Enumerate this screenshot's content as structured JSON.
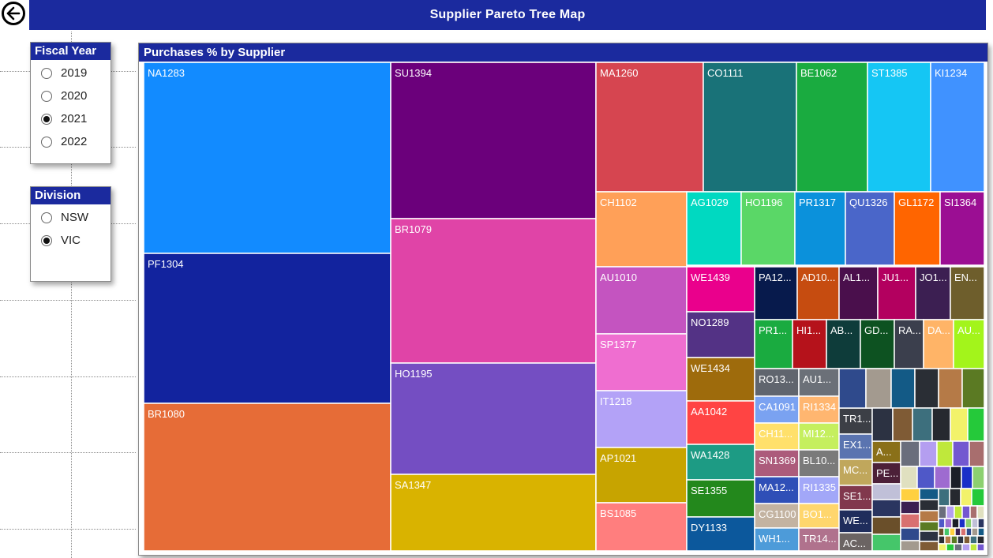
{
  "page": {
    "title": "Supplier Pareto Tree Map"
  },
  "back_button": {
    "icon": "arrow-left-circle-icon"
  },
  "slicers": {
    "fiscal_year": {
      "header": "Fiscal Year",
      "options": [
        {
          "label": "2019",
          "selected": false
        },
        {
          "label": "2020",
          "selected": false
        },
        {
          "label": "2021",
          "selected": true
        },
        {
          "label": "2022",
          "selected": false
        }
      ]
    },
    "division": {
      "header": "Division",
      "options": [
        {
          "label": "NSW",
          "selected": false
        },
        {
          "label": "VIC",
          "selected": true
        }
      ]
    }
  },
  "colors": {
    "header_bg": "#1b2a9e",
    "header_text": "#ffffff"
  },
  "chart_data": {
    "type": "treemap",
    "title": "Purchases % by Supplier",
    "unit": "percent of purchases (estimated from tile area)",
    "labeled_suppliers": [
      {
        "name": "NA1283",
        "value": 10.0,
        "color": "#128bff"
      },
      {
        "name": "PF1304",
        "value": 8.3,
        "color": "#12239e"
      },
      {
        "name": "BR1080",
        "value": 8.3,
        "color": "#e66c37"
      },
      {
        "name": "SU1394",
        "value": 7.2,
        "color": "#6b007b"
      },
      {
        "name": "BR1079",
        "value": 6.7,
        "color": "#e044a7"
      },
      {
        "name": "HO1195",
        "value": 5.2,
        "color": "#744ec2"
      },
      {
        "name": "SA1347",
        "value": 3.6,
        "color": "#d9b300"
      },
      {
        "name": "MA1260",
        "value": 3.0,
        "color": "#d64550"
      },
      {
        "name": "CO1111",
        "value": 2.6,
        "color": "#197278"
      },
      {
        "name": "BE1062",
        "value": 2.0,
        "color": "#1aab40"
      },
      {
        "name": "ST1385",
        "value": 1.7,
        "color": "#15c6f4"
      },
      {
        "name": "KI1234",
        "value": 1.4,
        "color": "#4092ff"
      },
      {
        "name": "CH1102",
        "value": 1.5,
        "color": "#ffa058"
      },
      {
        "name": "AG1029",
        "value": 0.9,
        "color": "#00d9c1"
      },
      {
        "name": "HO1196",
        "value": 0.9,
        "color": "#5ad767"
      },
      {
        "name": "PR1317",
        "value": 0.85,
        "color": "#0b91db"
      },
      {
        "name": "QU1326",
        "value": 0.8,
        "color": "#4a66c9"
      },
      {
        "name": "GL1172",
        "value": 0.8,
        "color": "#ff6500"
      },
      {
        "name": "SI1364",
        "value": 0.75,
        "color": "#9b0e93"
      },
      {
        "name": "AU1010",
        "value": 1.3,
        "color": "#c454c0"
      },
      {
        "name": "SP1377",
        "value": 1.1,
        "color": "#ef6ed0"
      },
      {
        "name": "IT1218",
        "value": 1.1,
        "color": "#b3a2f7"
      },
      {
        "name": "AP1021",
        "value": 1.0,
        "color": "#c7a400"
      },
      {
        "name": "BS1085",
        "value": 0.9,
        "color": "#ff7e7e"
      },
      {
        "name": "WE1439",
        "value": 0.6,
        "color": "#ea008c"
      },
      {
        "name": "NO1289",
        "value": 0.55,
        "color": "#533285"
      },
      {
        "name": "WE1434",
        "value": 0.55,
        "color": "#9e6b0c"
      },
      {
        "name": "AA1042",
        "value": 0.55,
        "color": "#ff4443"
      },
      {
        "name": "WA1428",
        "value": 0.5,
        "color": "#1d9b84"
      },
      {
        "name": "SE1355",
        "value": 0.45,
        "color": "#23881c"
      },
      {
        "name": "DY1133",
        "value": 0.5,
        "color": "#0c589c"
      },
      {
        "name": "PA12...",
        "value": 0.4,
        "color": "#071a4c"
      },
      {
        "name": "AD10...",
        "value": 0.4,
        "color": "#c64c10"
      },
      {
        "name": "AL1...",
        "value": 0.35,
        "color": "#4a0f4c"
      },
      {
        "name": "JU1...",
        "value": 0.35,
        "color": "#b3005f"
      },
      {
        "name": "JO1...",
        "value": 0.32,
        "color": "#3c1f52"
      },
      {
        "name": "EN...",
        "value": 0.3,
        "color": "#6e5e2c"
      },
      {
        "name": "PR1...",
        "value": 0.33,
        "color": "#1aab40"
      },
      {
        "name": "HI1...",
        "value": 0.3,
        "color": "#b5121b"
      },
      {
        "name": "AB...",
        "value": 0.28,
        "color": "#0e3c3a"
      },
      {
        "name": "GD...",
        "value": 0.28,
        "color": "#0d5221"
      },
      {
        "name": "RA...",
        "value": 0.26,
        "color": "#3b3f4d"
      },
      {
        "name": "DA...",
        "value": 0.24,
        "color": "#ffb467"
      },
      {
        "name": "AU...",
        "value": 0.24,
        "color": "#a3f41b"
      },
      {
        "name": "RO13...",
        "value": 0.2,
        "color": "#60656e"
      },
      {
        "name": "AU1...",
        "value": 0.2,
        "color": "#6b7078"
      },
      {
        "name": "CA1091",
        "value": 0.2,
        "color": "#7aa2f1"
      },
      {
        "name": "RI1334",
        "value": 0.2,
        "color": "#ffb670"
      },
      {
        "name": "CH11...",
        "value": 0.2,
        "color": "#ffe06b"
      },
      {
        "name": "MI12...",
        "value": 0.2,
        "color": "#c5ef5e"
      },
      {
        "name": "SN1369",
        "value": 0.2,
        "color": "#ac5b7b"
      },
      {
        "name": "BL10...",
        "value": 0.2,
        "color": "#7a7a7a"
      },
      {
        "name": "MA12...",
        "value": 0.2,
        "color": "#2f4fb7"
      },
      {
        "name": "RI1335",
        "value": 0.2,
        "color": "#a2a7f8"
      },
      {
        "name": "CG1100",
        "value": 0.2,
        "color": "#c3b3a1"
      },
      {
        "name": "BO1...",
        "value": 0.2,
        "color": "#ffd66d"
      },
      {
        "name": "WH1...",
        "value": 0.2,
        "color": "#4d9bd9"
      },
      {
        "name": "TR14...",
        "value": 0.2,
        "color": "#b0728d"
      },
      {
        "name": "TR1...",
        "value": 0.18,
        "color": "#3c3f46"
      },
      {
        "name": "EX1...",
        "value": 0.15,
        "color": "#5a74b0"
      },
      {
        "name": "A...",
        "value": 0.12,
        "color": "#8a7019"
      },
      {
        "name": "MC...",
        "value": 0.14,
        "color": "#c0a75c"
      },
      {
        "name": "PE...",
        "value": 0.12,
        "color": "#4c2038"
      },
      {
        "name": "SE1...",
        "value": 0.13,
        "color": "#81384d"
      },
      {
        "name": "WE...",
        "value": 0.12,
        "color": "#1f2d5c"
      },
      {
        "name": "AC...",
        "value": 0.12,
        "color": "#6b6463"
      }
    ]
  }
}
